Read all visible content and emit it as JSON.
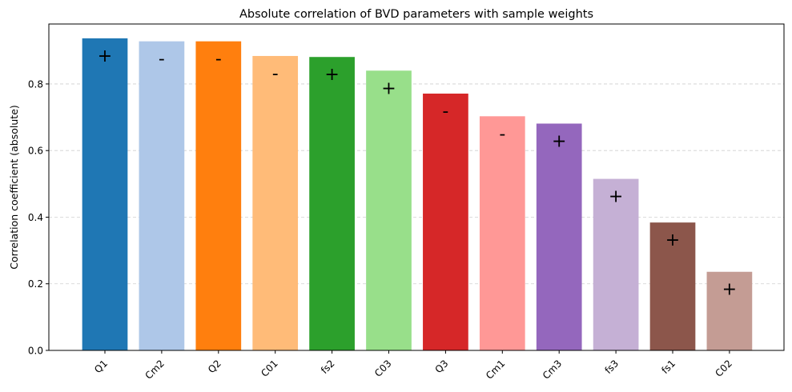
{
  "chart_data": {
    "type": "bar",
    "title": "Absolute correlation of BVD parameters with sample weights",
    "xlabel": "",
    "ylabel": "Correlation coefficient (absolute)",
    "ylim": [
      0,
      0.98
    ],
    "yticks": [
      "0.0",
      "0.2",
      "0.4",
      "0.6",
      "0.8"
    ],
    "grid": "y-dashed",
    "categories": [
      "Q1",
      "Cm2",
      "Q2",
      "C01",
      "fs2",
      "C03",
      "Q3",
      "Cm1",
      "Cm3",
      "fs3",
      "fs1",
      "C02"
    ],
    "values": [
      0.937,
      0.928,
      0.928,
      0.884,
      0.881,
      0.84,
      0.771,
      0.703,
      0.681,
      0.515,
      0.384,
      0.236
    ],
    "signs": [
      "+",
      "-",
      "-",
      "-",
      "+",
      "+",
      "-",
      "-",
      "+",
      "+",
      "+",
      "+"
    ],
    "colors": [
      "#1f77b4",
      "#aec7e8",
      "#ff7f0e",
      "#ffbb78",
      "#2ca02c",
      "#98df8a",
      "#d62728",
      "#ff9896",
      "#9467bd",
      "#c5b0d5",
      "#8c564b",
      "#c49c94"
    ]
  }
}
